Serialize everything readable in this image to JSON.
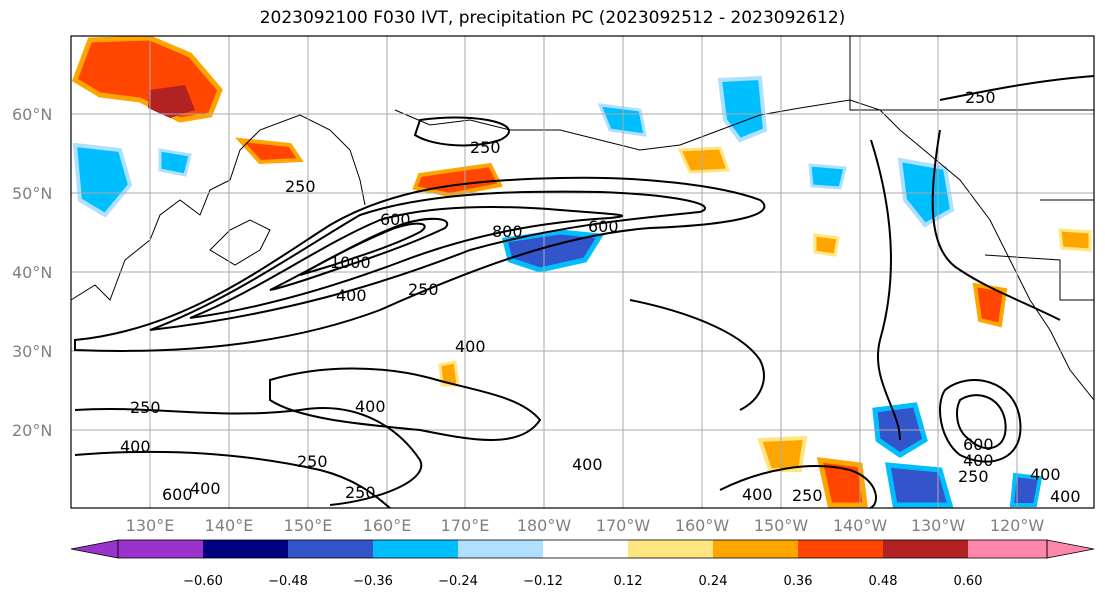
{
  "title": "2023092100 F030 IVT, precipitation PC (2023092512 - 2023092612)",
  "map": {
    "lat_labels": [
      "60°N",
      "50°N",
      "40°N",
      "30°N",
      "20°N"
    ],
    "lon_labels": [
      "130°E",
      "140°E",
      "150°E",
      "160°E",
      "170°E",
      "180°W",
      "170°W",
      "160°W",
      "150°W",
      "140°W",
      "130°W",
      "120°W"
    ],
    "contour_labels": [
      "250",
      "250",
      "250",
      "250",
      "250",
      "250",
      "250",
      "250",
      "250",
      "400",
      "400",
      "400",
      "400",
      "400",
      "400",
      "400",
      "400",
      "400",
      "400",
      "600",
      "600",
      "600",
      "600",
      "800",
      "1000"
    ]
  },
  "colorbar": {
    "tick_labels": [
      "−0.60",
      "−0.48",
      "−0.36",
      "−0.24",
      "−0.12",
      "0.12",
      "0.24",
      "0.36",
      "0.48",
      "0.60"
    ],
    "colors": [
      "#9933cc",
      "#000080",
      "#3355cc",
      "#00bfff",
      "#b0e0ff",
      "#ffffff",
      "#ffe680",
      "#ffa500",
      "#ff4500",
      "#b22222",
      "#ff88aa"
    ]
  }
}
